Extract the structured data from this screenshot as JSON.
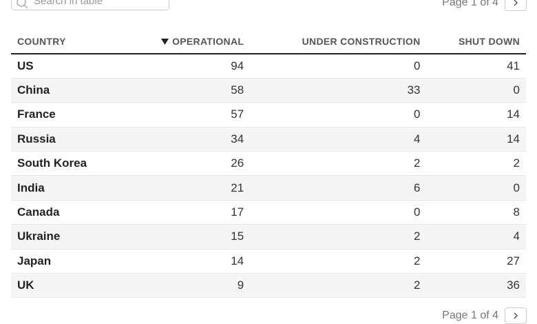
{
  "search": {
    "placeholder": "Search in table"
  },
  "pagination": {
    "label": "Page 1 of 4"
  },
  "table": {
    "columns": [
      "COUNTRY",
      "OPERATIONAL",
      "UNDER CONSTRUCTION",
      "SHUT DOWN"
    ],
    "rows": [
      [
        "US",
        94,
        0,
        41
      ],
      [
        "China",
        58,
        33,
        0
      ],
      [
        "France",
        57,
        0,
        14
      ],
      [
        "Russia",
        34,
        4,
        14
      ],
      [
        "South Korea",
        26,
        2,
        2
      ],
      [
        "India",
        21,
        6,
        0
      ],
      [
        "Canada",
        17,
        0,
        8
      ],
      [
        "Ukraine",
        15,
        2,
        4
      ],
      [
        "Japan",
        14,
        2,
        27
      ],
      [
        "UK",
        9,
        2,
        36
      ]
    ]
  }
}
